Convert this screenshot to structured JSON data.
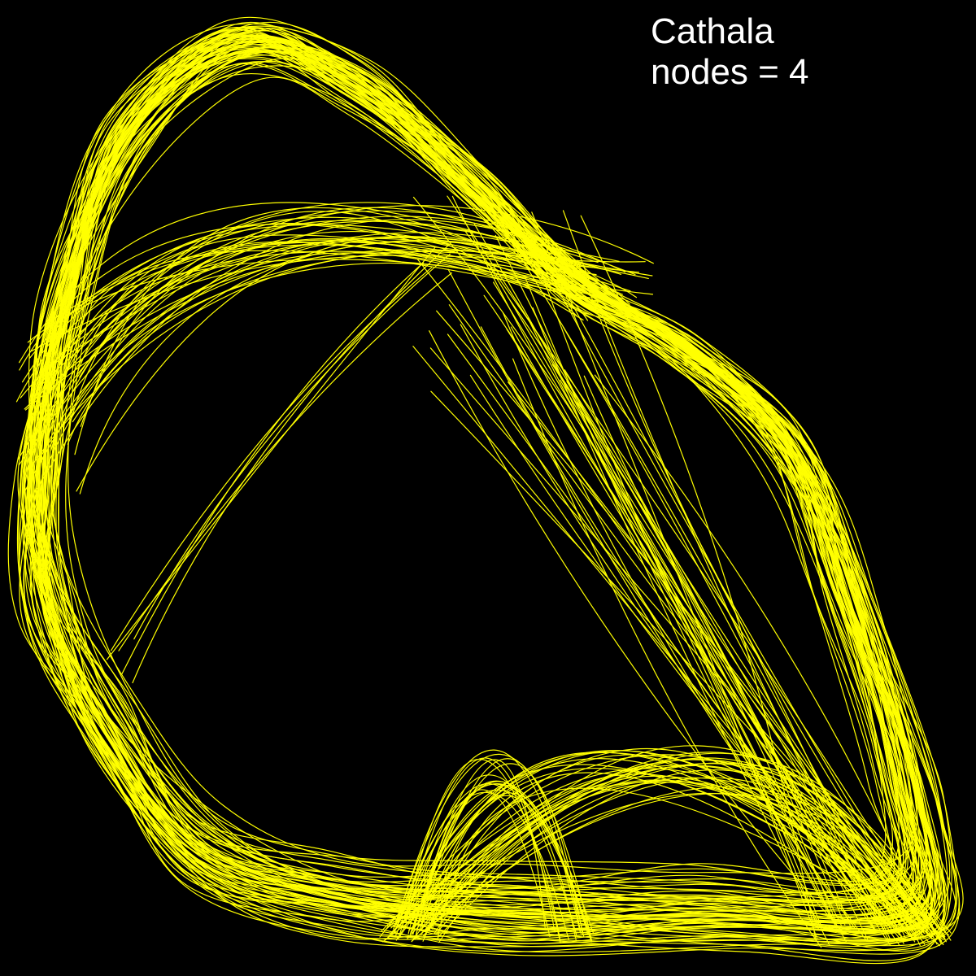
{
  "title": "Cathala",
  "nodes_label": "nodes = 4",
  "colors": {
    "background": "#000000",
    "trajectory": "#ffff00",
    "text": "#ffffff"
  }
}
